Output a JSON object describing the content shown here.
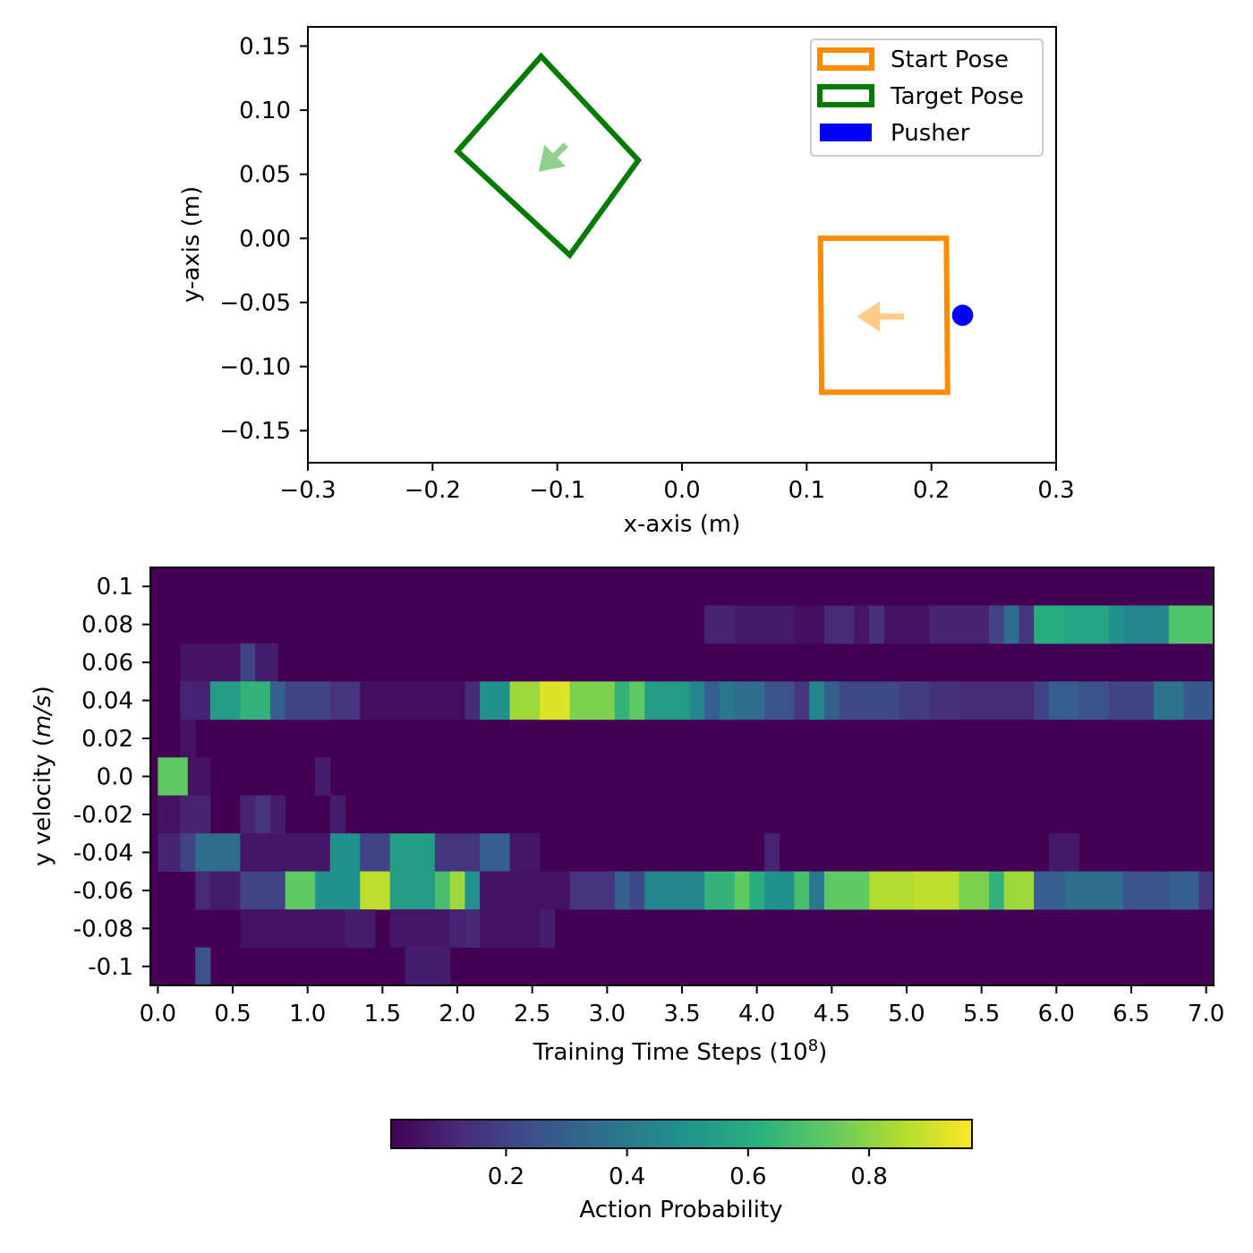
{
  "chart_data": [
    {
      "type": "scatter",
      "xlabel": "x-axis (m)",
      "ylabel": "y-axis (m)",
      "xlim": [
        -0.3,
        0.3
      ],
      "ylim": [
        -0.175,
        0.165
      ],
      "xticks": [
        "−0.3",
        "−0.2",
        "−0.1",
        "0.0",
        "0.1",
        "0.2",
        "0.3"
      ],
      "xtick_values": [
        -0.3,
        -0.2,
        -0.1,
        0.0,
        0.1,
        0.2,
        0.3
      ],
      "yticks": [
        "0.15",
        "0.10",
        "0.05",
        "0.00",
        "−0.05",
        "−0.10",
        "−0.15"
      ],
      "ytick_values": [
        0.15,
        0.1,
        0.05,
        0.0,
        -0.05,
        -0.1,
        -0.15
      ],
      "legend_position": "top-right",
      "legend": [
        {
          "label": "Start Pose",
          "style": "outline",
          "color": "#ff8c00"
        },
        {
          "label": "Target Pose",
          "style": "outline",
          "color": "#007a00"
        },
        {
          "label": "Pusher",
          "style": "fill",
          "color": "#0000ff"
        }
      ],
      "shapes": {
        "target_pose": {
          "color": "#007a00",
          "corners": [
            [
              -0.113,
              0.142
            ],
            [
              -0.035,
              0.061
            ],
            [
              -0.09,
              -0.013
            ],
            [
              -0.18,
              0.068
            ]
          ],
          "arrow": {
            "from": [
              -0.093,
              0.073
            ],
            "to": [
              -0.115,
              0.052
            ],
            "color": "#8fd08f"
          }
        },
        "start_pose": {
          "color": "#ff8c00",
          "corners": [
            [
              0.111,
              0.0
            ],
            [
              0.212,
              0.0
            ],
            [
              0.213,
              -0.12
            ],
            [
              0.112,
              -0.12
            ]
          ],
          "arrow": {
            "from": [
              0.178,
              -0.061
            ],
            "to": [
              0.14,
              -0.061
            ],
            "color": "#ffcc88"
          }
        },
        "pusher": {
          "center": [
            0.225,
            -0.06
          ],
          "radius": 0.0085,
          "color": "#0000ff"
        }
      }
    },
    {
      "type": "heatmap",
      "xlabel": "Training Time Steps (10",
      "xlabel_sup": "8",
      "xlabel_end": ")",
      "ylabel": "y velocity (",
      "ylabel_italic": "m/s",
      "ylabel_end": ")",
      "xlim": [
        -0.05,
        7.05
      ],
      "xticks": [
        "0.0",
        "0.5",
        "1.0",
        "1.5",
        "2.0",
        "2.5",
        "3.0",
        "3.5",
        "4.0",
        "4.5",
        "5.0",
        "5.5",
        "6.0",
        "6.5",
        "7.0"
      ],
      "xtick_values": [
        0.0,
        0.5,
        1.0,
        1.5,
        2.0,
        2.5,
        3.0,
        3.5,
        4.0,
        4.5,
        5.0,
        5.5,
        6.0,
        6.5,
        7.0
      ],
      "y_categories": [
        "0.1",
        "0.08",
        "0.06",
        "0.04",
        "0.02",
        "0.0",
        "-0.02",
        "-0.04",
        "-0.06",
        "-0.08",
        "-0.1"
      ],
      "colormap": "viridis",
      "background_value": 0.0,
      "rows": {
        "0.08": [
          [
            3.65,
            3.85,
            0.1
          ],
          [
            3.85,
            4.25,
            0.07
          ],
          [
            4.25,
            4.45,
            0.04
          ],
          [
            4.45,
            4.65,
            0.12
          ],
          [
            4.65,
            4.75,
            0.06
          ],
          [
            4.75,
            4.85,
            0.14
          ],
          [
            4.85,
            5.15,
            0.05
          ],
          [
            5.15,
            5.55,
            0.1
          ],
          [
            5.55,
            5.65,
            0.2
          ],
          [
            5.65,
            5.75,
            0.35
          ],
          [
            5.75,
            5.85,
            0.15
          ],
          [
            5.85,
            6.05,
            0.62
          ],
          [
            6.05,
            6.35,
            0.58
          ],
          [
            6.35,
            6.45,
            0.5
          ],
          [
            6.45,
            6.75,
            0.45
          ],
          [
            6.75,
            7.05,
            0.72
          ]
        ],
        "0.06": [
          [
            0.15,
            0.55,
            0.05
          ],
          [
            0.55,
            0.65,
            0.2
          ],
          [
            0.65,
            0.8,
            0.08
          ]
        ],
        "0.04": [
          [
            0.15,
            0.35,
            0.1
          ],
          [
            0.35,
            0.55,
            0.55
          ],
          [
            0.55,
            0.75,
            0.65
          ],
          [
            0.75,
            0.85,
            0.3
          ],
          [
            0.85,
            1.15,
            0.2
          ],
          [
            1.15,
            1.35,
            0.15
          ],
          [
            1.35,
            2.05,
            0.04
          ],
          [
            2.05,
            2.15,
            0.12
          ],
          [
            2.15,
            2.35,
            0.5
          ],
          [
            2.35,
            2.55,
            0.85
          ],
          [
            2.55,
            2.75,
            0.95
          ],
          [
            2.75,
            3.05,
            0.8
          ],
          [
            3.05,
            3.15,
            0.65
          ],
          [
            3.15,
            3.25,
            0.75
          ],
          [
            3.25,
            3.55,
            0.55
          ],
          [
            3.55,
            3.65,
            0.45
          ],
          [
            3.65,
            3.75,
            0.3
          ],
          [
            3.75,
            3.85,
            0.4
          ],
          [
            3.85,
            4.05,
            0.35
          ],
          [
            4.05,
            4.25,
            0.25
          ],
          [
            4.25,
            4.35,
            0.15
          ],
          [
            4.35,
            4.45,
            0.45
          ],
          [
            4.45,
            4.55,
            0.3
          ],
          [
            4.55,
            4.95,
            0.22
          ],
          [
            4.95,
            5.15,
            0.18
          ],
          [
            5.15,
            5.35,
            0.14
          ],
          [
            5.35,
            5.85,
            0.12
          ],
          [
            5.85,
            5.95,
            0.2
          ],
          [
            5.95,
            6.15,
            0.3
          ],
          [
            6.15,
            6.35,
            0.25
          ],
          [
            6.35,
            6.65,
            0.2
          ],
          [
            6.65,
            6.85,
            0.38
          ],
          [
            6.85,
            7.05,
            0.28
          ]
        ],
        "0.02": [
          [
            0.15,
            0.25,
            0.05
          ]
        ],
        "0.0": [
          [
            0.0,
            0.2,
            0.75
          ],
          [
            0.2,
            0.35,
            0.05
          ],
          [
            1.05,
            1.15,
            0.08
          ]
        ],
        "-0.02": [
          [
            0.0,
            0.15,
            0.05
          ],
          [
            0.15,
            0.35,
            0.1
          ],
          [
            0.55,
            0.65,
            0.1
          ],
          [
            0.65,
            0.75,
            0.15
          ],
          [
            0.75,
            0.85,
            0.08
          ],
          [
            1.15,
            1.25,
            0.08
          ]
        ],
        "-0.04": [
          [
            0.0,
            0.15,
            0.1
          ],
          [
            0.15,
            0.25,
            0.2
          ],
          [
            0.25,
            0.55,
            0.35
          ],
          [
            0.55,
            1.15,
            0.06
          ],
          [
            1.15,
            1.35,
            0.5
          ],
          [
            1.35,
            1.55,
            0.2
          ],
          [
            1.55,
            1.85,
            0.55
          ],
          [
            1.85,
            2.15,
            0.15
          ],
          [
            2.15,
            2.35,
            0.3
          ],
          [
            2.35,
            2.55,
            0.06
          ],
          [
            4.05,
            4.15,
            0.1
          ],
          [
            5.95,
            6.15,
            0.07
          ]
        ],
        "-0.06": [
          [
            0.25,
            0.35,
            0.12
          ],
          [
            0.35,
            0.55,
            0.08
          ],
          [
            0.55,
            0.85,
            0.2
          ],
          [
            0.85,
            1.05,
            0.75
          ],
          [
            1.05,
            1.35,
            0.5
          ],
          [
            1.35,
            1.55,
            0.9
          ],
          [
            1.55,
            1.85,
            0.55
          ],
          [
            1.85,
            1.95,
            0.7
          ],
          [
            1.95,
            2.05,
            0.85
          ],
          [
            2.05,
            2.15,
            0.5
          ],
          [
            2.15,
            2.75,
            0.05
          ],
          [
            2.75,
            3.05,
            0.15
          ],
          [
            3.05,
            3.15,
            0.3
          ],
          [
            3.15,
            3.25,
            0.22
          ],
          [
            3.25,
            3.65,
            0.45
          ],
          [
            3.65,
            3.85,
            0.65
          ],
          [
            3.85,
            3.95,
            0.75
          ],
          [
            3.95,
            4.05,
            0.62
          ],
          [
            4.05,
            4.25,
            0.5
          ],
          [
            4.25,
            4.35,
            0.7
          ],
          [
            4.35,
            4.45,
            0.4
          ],
          [
            4.45,
            4.75,
            0.75
          ],
          [
            4.75,
            5.05,
            0.88
          ],
          [
            5.05,
            5.35,
            0.9
          ],
          [
            5.35,
            5.55,
            0.8
          ],
          [
            5.55,
            5.65,
            0.65
          ],
          [
            5.65,
            5.85,
            0.85
          ],
          [
            5.85,
            6.05,
            0.3
          ],
          [
            6.05,
            6.45,
            0.35
          ],
          [
            6.45,
            6.75,
            0.25
          ],
          [
            6.75,
            6.95,
            0.3
          ],
          [
            6.95,
            7.05,
            0.15
          ]
        ],
        "-0.08": [
          [
            0.55,
            1.25,
            0.05
          ],
          [
            1.25,
            1.45,
            0.08
          ],
          [
            1.55,
            1.95,
            0.06
          ],
          [
            1.95,
            2.05,
            0.1
          ],
          [
            2.05,
            2.15,
            0.12
          ],
          [
            2.15,
            2.55,
            0.05
          ],
          [
            2.55,
            2.65,
            0.08
          ]
        ],
        "-0.1": [
          [
            0.25,
            0.35,
            0.25
          ],
          [
            1.65,
            1.95,
            0.08
          ]
        ]
      }
    },
    {
      "type": "colorbar",
      "label": "Action Probability",
      "colormap": "viridis",
      "range": [
        0.01,
        0.97
      ],
      "ticks": [
        "0.2",
        "0.4",
        "0.6",
        "0.8"
      ],
      "tick_values": [
        0.2,
        0.4,
        0.6,
        0.8
      ]
    }
  ]
}
